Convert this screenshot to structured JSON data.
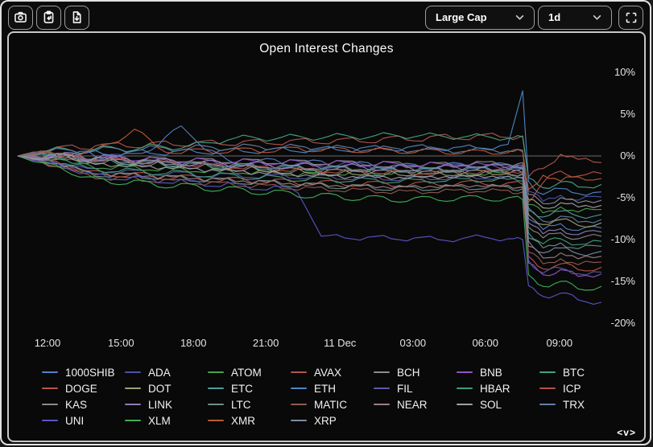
{
  "toolbar": {
    "buttons": [
      {
        "id": "screenshot",
        "icon": "camera-icon"
      },
      {
        "id": "copy-to-clipboard",
        "icon": "clipboard-paste-icon"
      },
      {
        "id": "export-file",
        "icon": "file-download-icon"
      }
    ],
    "category_select": {
      "value": "Large Cap",
      "icon": "chevron-down-icon"
    },
    "interval_select": {
      "value": "1d",
      "icon": "chevron-down-icon"
    },
    "fullscreen_button": {
      "icon": "fullscreen-icon"
    }
  },
  "watermark": "<v>",
  "chart_data": {
    "type": "line",
    "title": "Open Interest Changes",
    "ylabel": "",
    "xlabel": "",
    "ylim": [
      -20,
      10
    ],
    "y_unit": "%",
    "grid": false,
    "zero_line": true,
    "legend_position": "bottom",
    "background": "#090909",
    "y_ticks": [
      10,
      5,
      0,
      -5,
      -10,
      -15,
      -20
    ],
    "x_ticks": [
      {
        "label": "12:00",
        "f": 5.1
      },
      {
        "label": "15:00",
        "f": 17.7
      },
      {
        "label": "18:00",
        "f": 30.1
      },
      {
        "label": "21:00",
        "f": 42.5
      },
      {
        "label": "11 Dec",
        "f": 55.2
      },
      {
        "label": "03:00",
        "f": 67.7
      },
      {
        "label": "06:00",
        "f": 80.1
      },
      {
        "label": "09:00",
        "f": 92.8
      }
    ],
    "x": [
      0,
      4,
      8,
      12,
      16,
      20,
      24,
      28,
      32,
      36,
      40,
      44,
      48,
      52,
      56,
      60,
      64,
      68,
      72,
      76,
      80,
      84,
      86.5,
      87.5,
      90,
      93,
      96,
      100
    ],
    "series": [
      {
        "name": "1000SHIB",
        "color": "#557fc2",
        "values": [
          0,
          0.5,
          -0.4,
          0.6,
          -0.5,
          0.3,
          1.2,
          3.6,
          0.8,
          -0.5,
          -1.0,
          -0.4,
          -1.1,
          -0.6,
          -1.3,
          -0.8,
          -1.5,
          -1.0,
          -1.4,
          -0.9,
          -1.3,
          -1.0,
          -1.2,
          -7.5,
          -8.8,
          -8.1,
          -8.9,
          -8.6
        ]
      },
      {
        "name": "ADA",
        "color": "#4c51a8",
        "values": [
          0,
          -0.3,
          0.4,
          -0.6,
          0.2,
          -0.8,
          -0.4,
          -1.1,
          -0.6,
          -1.2,
          -0.8,
          -1.4,
          -0.9,
          -1.3,
          -0.8,
          -1.2,
          -1.6,
          -1.1,
          -1.5,
          -1.0,
          -1.4,
          -1.1,
          -1.3,
          -4.2,
          -5.4,
          -4.7,
          -5.3,
          -4.9
        ]
      },
      {
        "name": "ATOM",
        "color": "#4ba04b",
        "values": [
          0,
          0.3,
          -0.5,
          -1.0,
          -1.6,
          -1.2,
          -1.8,
          -1.4,
          -2.0,
          -1.6,
          -2.2,
          -1.8,
          -2.4,
          -1.9,
          -2.3,
          -1.8,
          -2.2,
          -1.7,
          -2.1,
          -1.8,
          -2.3,
          -2.0,
          -2.2,
          -5.8,
          -6.8,
          -6.1,
          -6.7,
          -6.4
        ]
      },
      {
        "name": "AVAX",
        "color": "#b0564a",
        "values": [
          0,
          0.6,
          1.2,
          0.8,
          1.5,
          1.0,
          1.7,
          1.2,
          1.8,
          1.3,
          1.9,
          1.4,
          2.0,
          1.5,
          2.1,
          1.6,
          2.3,
          1.8,
          2.5,
          2.0,
          2.6,
          2.2,
          2.4,
          -2.5,
          -1.5,
          0.2,
          -0.4,
          -0.8
        ]
      },
      {
        "name": "BCH",
        "color": "#8c8c8c",
        "values": [
          0,
          -0.2,
          0.3,
          -0.4,
          0.1,
          -0.6,
          -0.2,
          -0.7,
          -0.3,
          -0.8,
          -0.4,
          -0.9,
          -0.5,
          -1.0,
          -0.6,
          -1.1,
          -0.7,
          -1.2,
          -0.8,
          -1.1,
          -0.7,
          -1.0,
          -0.8,
          -4.6,
          -5.7,
          -5.0,
          -5.6,
          -5.3
        ]
      },
      {
        "name": "BNB",
        "color": "#9055c2",
        "values": [
          0,
          -0.3,
          0.2,
          -0.5,
          -0.1,
          -0.6,
          -0.3,
          -0.8,
          -0.4,
          -0.9,
          -0.5,
          -1.0,
          -0.6,
          -1.1,
          -0.7,
          -1.2,
          -0.8,
          -1.3,
          -0.9,
          -1.2,
          -1.0,
          -1.3,
          -1.1,
          -12.8,
          -14.2,
          -13.6,
          -14.4,
          -14.1
        ]
      },
      {
        "name": "BTC",
        "color": "#43a383",
        "values": [
          0,
          0.4,
          0.9,
          0.5,
          1.1,
          0.7,
          1.3,
          0.9,
          1.6,
          1.9,
          2.3,
          2.0,
          2.4,
          2.1,
          2.5,
          2.2,
          2.6,
          2.3,
          2.5,
          2.2,
          2.4,
          2.1,
          2.3,
          -2.6,
          -3.8,
          -3.1,
          -3.7,
          -3.4
        ]
      },
      {
        "name": "DOGE",
        "color": "#bc5248",
        "values": [
          0,
          -0.5,
          -1.2,
          -1.8,
          -2.4,
          -2.0,
          -2.7,
          -2.3,
          -3.0,
          -2.6,
          -3.2,
          -2.8,
          -3.4,
          -3.0,
          -3.5,
          -3.1,
          -3.6,
          -3.2,
          -3.5,
          -3.1,
          -3.4,
          -3.2,
          -3.4,
          -12.0,
          -13.5,
          -12.9,
          -13.6,
          -13.3
        ]
      },
      {
        "name": "DOT",
        "color": "#9fa073",
        "values": [
          0,
          -0.4,
          0.2,
          -0.7,
          -0.3,
          -1.0,
          -0.6,
          -1.3,
          -0.9,
          -1.6,
          -1.2,
          -1.9,
          -1.5,
          -2.1,
          -1.7,
          -2.2,
          -1.8,
          -2.3,
          -1.9,
          -2.2,
          -1.8,
          -2.1,
          -2.0,
          -7.0,
          -8.2,
          -7.6,
          -8.3,
          -8.0
        ]
      },
      {
        "name": "ETC",
        "color": "#4e9e97",
        "values": [
          0,
          0.2,
          -0.4,
          -0.9,
          -0.5,
          -1.1,
          -0.7,
          -1.3,
          -0.9,
          -1.5,
          -1.1,
          -1.7,
          -1.2,
          -1.8,
          -1.3,
          -1.9,
          -1.4,
          -2.0,
          -1.5,
          -1.9,
          -1.4,
          -1.8,
          -1.6,
          -6.2,
          -7.3,
          -6.6,
          -7.2,
          -7.0
        ]
      },
      {
        "name": "ETH",
        "color": "#4f86c6",
        "values": [
          0,
          0.4,
          -0.2,
          0.5,
          0.1,
          0.6,
          0.2,
          0.7,
          0.3,
          0.8,
          0.4,
          0.9,
          0.5,
          1.0,
          0.6,
          1.1,
          0.7,
          1.2,
          0.8,
          1.1,
          0.9,
          1.4,
          7.8,
          -3.0,
          -4.6,
          -3.9,
          -4.5,
          -4.3
        ]
      },
      {
        "name": "FIL",
        "color": "#5a5aa8",
        "values": [
          0,
          -0.4,
          -1.0,
          -1.5,
          -2.0,
          -1.7,
          -2.3,
          -1.9,
          -2.5,
          -2.1,
          -2.6,
          -2.2,
          -2.7,
          -2.3,
          -2.8,
          -2.4,
          -2.9,
          -2.5,
          -2.8,
          -2.4,
          -2.7,
          -2.5,
          -2.7,
          -12.5,
          -14.0,
          -13.4,
          -14.1,
          -13.9
        ]
      },
      {
        "name": "HBAR",
        "color": "#3f9e7c",
        "values": [
          0,
          -0.3,
          -0.9,
          -1.4,
          -1.9,
          -1.6,
          -2.2,
          -1.8,
          -2.5,
          -2.1,
          -2.8,
          -2.4,
          -3.0,
          -2.6,
          -3.1,
          -2.7,
          -3.2,
          -2.8,
          -3.1,
          -2.7,
          -3.0,
          -2.8,
          -3.0,
          -9.2,
          -10.5,
          -9.9,
          -10.6,
          -10.2
        ]
      },
      {
        "name": "ICP",
        "color": "#b84f4a",
        "values": [
          0,
          -0.3,
          0.3,
          -0.6,
          -0.2,
          -0.9,
          -0.5,
          -1.2,
          -0.8,
          -1.5,
          -1.1,
          -1.8,
          -1.4,
          -2.0,
          -1.6,
          -2.1,
          -1.7,
          -2.2,
          -1.8,
          -2.1,
          -1.7,
          -2.0,
          -1.9,
          -5.5,
          -3.2,
          -1.8,
          -2.4,
          -2.1
        ]
      },
      {
        "name": "KAS",
        "color": "#8a8a8a",
        "values": [
          0,
          -0.5,
          0.1,
          -0.8,
          -0.4,
          -1.1,
          -0.7,
          -1.4,
          -1.0,
          -1.7,
          -1.3,
          -2.0,
          -1.6,
          -2.2,
          -1.8,
          -2.3,
          -1.9,
          -2.4,
          -2.0,
          -2.3,
          -1.9,
          -2.2,
          -2.1,
          -8.5,
          -9.8,
          -9.2,
          -9.9,
          -9.6
        ]
      },
      {
        "name": "LINK",
        "color": "#8f7bb3",
        "values": [
          0,
          -0.2,
          0.4,
          -0.5,
          -0.1,
          -0.8,
          -0.4,
          -1.0,
          -0.6,
          -1.2,
          -0.8,
          -1.4,
          -1.0,
          -1.5,
          -1.1,
          -1.6,
          -1.2,
          -1.7,
          -1.3,
          -1.6,
          -1.2,
          -1.5,
          -1.4,
          -8.0,
          -9.3,
          -8.7,
          -9.4,
          -9.1
        ]
      },
      {
        "name": "LTC",
        "color": "#6e8f8a",
        "values": [
          0,
          -0.6,
          -1.3,
          -1.9,
          -2.5,
          -2.1,
          -2.8,
          -2.4,
          -3.1,
          -2.7,
          -3.4,
          -3.0,
          -3.7,
          -3.3,
          -3.9,
          -3.5,
          -4.1,
          -3.7,
          -4.0,
          -3.6,
          -3.9,
          -3.7,
          -3.9,
          -9.8,
          -11.0,
          -10.4,
          -11.1,
          -10.8
        ]
      },
      {
        "name": "MATIC",
        "color": "#8f5a50",
        "values": [
          0,
          -0.7,
          -1.5,
          -2.2,
          -2.9,
          -2.5,
          -3.2,
          -2.8,
          -3.5,
          -3.1,
          -3.8,
          -3.4,
          -4.1,
          -3.7,
          -4.3,
          -3.9,
          -4.5,
          -4.1,
          -4.4,
          -4.0,
          -4.3,
          -4.1,
          -4.3,
          -11.5,
          -12.9,
          -12.3,
          -13.0,
          -12.7
        ]
      },
      {
        "name": "NEAR",
        "color": "#9c7f85",
        "values": [
          0,
          -0.5,
          -1.2,
          -1.8,
          -2.4,
          -2.0,
          -2.7,
          -2.3,
          -3.0,
          -2.6,
          -3.3,
          -2.9,
          -3.6,
          -3.2,
          -3.8,
          -3.4,
          -3.9,
          -3.5,
          -3.8,
          -3.4,
          -3.7,
          -3.5,
          -3.7,
          -10.8,
          -12.2,
          -11.6,
          -12.3,
          -12.0
        ]
      },
      {
        "name": "SOL",
        "color": "#a0a0a0",
        "values": [
          0,
          -0.4,
          0.2,
          -0.7,
          -1.3,
          -1.0,
          -1.6,
          -1.2,
          -1.9,
          -1.5,
          -2.2,
          -1.8,
          -2.5,
          -2.1,
          -2.7,
          -2.3,
          -2.8,
          -2.4,
          -2.7,
          -2.3,
          -2.6,
          -2.4,
          -2.6,
          -5.2,
          -6.2,
          -5.6,
          -6.1,
          -5.9
        ]
      },
      {
        "name": "TRX",
        "color": "#6580a8",
        "values": [
          0,
          0.3,
          0.8,
          0.4,
          1.0,
          0.6,
          1.1,
          0.7,
          1.2,
          0.8,
          1.3,
          0.9,
          1.2,
          0.8,
          1.1,
          0.7,
          1.0,
          0.6,
          0.9,
          0.5,
          0.8,
          0.6,
          0.7,
          -6.5,
          -7.8,
          -7.2,
          -7.9,
          -7.6
        ]
      },
      {
        "name": "UNI",
        "color": "#5b55c8",
        "values": [
          0,
          -0.6,
          -1.4,
          -2.0,
          -2.8,
          -2.4,
          -3.2,
          -2.8,
          -3.6,
          -3.2,
          -4.0,
          -3.6,
          -4.4,
          -9.6,
          -9.8,
          -9.7,
          -9.9,
          -9.8,
          -10.0,
          -9.9,
          -9.7,
          -9.9,
          -10.0,
          -15.5,
          -16.8,
          -16.4,
          -17.2,
          -17.5
        ]
      },
      {
        "name": "XLM",
        "color": "#3fae57",
        "values": [
          0,
          -0.8,
          -1.7,
          -2.5,
          -3.3,
          -2.9,
          -3.7,
          -3.3,
          -4.1,
          -3.7,
          -4.5,
          -4.1,
          -4.9,
          -4.5,
          -5.2,
          -4.8,
          -5.4,
          -5.0,
          -5.3,
          -4.9,
          -5.2,
          -5.0,
          -5.2,
          -14.2,
          -15.6,
          -15.0,
          -15.9,
          -15.6
        ]
      },
      {
        "name": "XMR",
        "color": "#bc5a36",
        "values": [
          0,
          0.4,
          -0.2,
          0.6,
          1.5,
          3.2,
          1.0,
          0.3,
          0.8,
          0.4,
          0.9,
          0.5,
          1.0,
          0.6,
          0.9,
          0.5,
          0.8,
          0.4,
          0.7,
          0.3,
          0.6,
          0.4,
          0.5,
          -4.0,
          -2.3,
          -3.0,
          -2.5,
          -2.7
        ]
      },
      {
        "name": "XRP",
        "color": "#7b8ca6",
        "values": [
          0,
          -0.3,
          0.3,
          -0.6,
          -0.2,
          -0.9,
          -0.5,
          -1.1,
          -0.7,
          -1.3,
          -0.9,
          -1.5,
          -1.1,
          -1.6,
          -1.2,
          -1.7,
          -1.3,
          -1.8,
          -1.4,
          -1.7,
          -1.3,
          -1.6,
          -1.5,
          -10.2,
          -11.6,
          -11.0,
          -11.7,
          -11.4
        ]
      }
    ]
  }
}
